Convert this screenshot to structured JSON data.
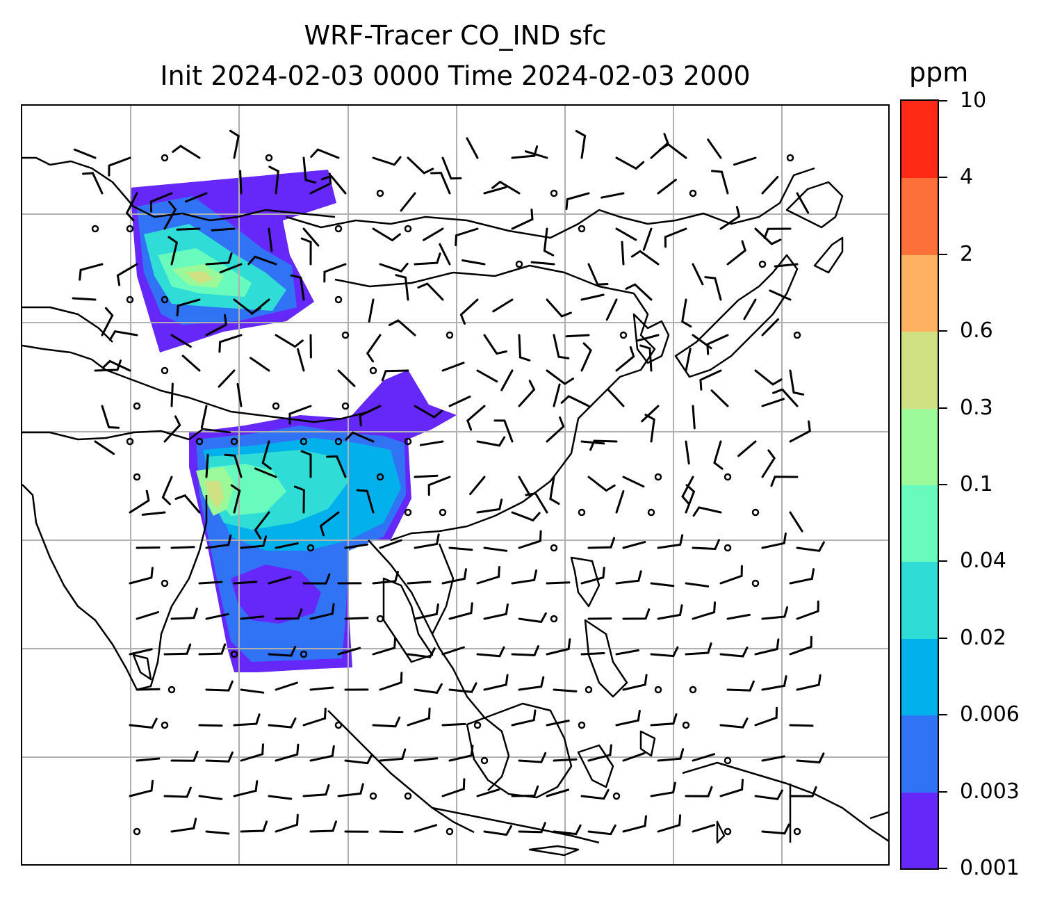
{
  "title": {
    "line1": "WRF-Tracer CO_IND sfc",
    "line2": "Init 2024-02-03 0000 Time 2024-02-03 2000"
  },
  "colorbar": {
    "unit": "ppm",
    "ticks": [
      "0.001",
      "0.003",
      "0.006",
      "0.02",
      "0.04",
      "0.1",
      "0.3",
      "0.6",
      "2",
      "4",
      "10"
    ],
    "colors": [
      "#6628f8",
      "#3173f5",
      "#02b0ec",
      "#2fdcd6",
      "#69fbbe",
      "#9bf99a",
      "#cfe182",
      "#feb161",
      "#fe7039",
      "#fe2a15"
    ]
  },
  "map": {
    "gridlines": true,
    "coastline_color": "#000000",
    "gridline_color": "#b0b0b0",
    "overlay": "wind-barbs"
  }
}
